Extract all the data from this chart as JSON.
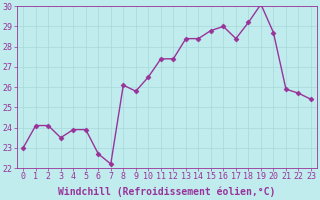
{
  "x": [
    0,
    1,
    2,
    3,
    4,
    5,
    6,
    7,
    8,
    9,
    10,
    11,
    12,
    13,
    14,
    15,
    16,
    17,
    18,
    19,
    20,
    21,
    22,
    23
  ],
  "y": [
    23.0,
    24.1,
    24.1,
    23.5,
    23.9,
    23.9,
    22.7,
    22.2,
    26.1,
    25.8,
    26.5,
    27.4,
    27.4,
    28.4,
    28.4,
    28.8,
    29.0,
    28.4,
    29.2,
    30.1,
    28.7,
    25.9,
    25.7,
    25.4
  ],
  "line_color": "#993399",
  "marker": "D",
  "bg_color": "#c0ecee",
  "grid_color": "#a8d8da",
  "axis_color": "#993399",
  "tick_color": "#993399",
  "xlabel": "Windchill (Refroidissement éolien,°C)",
  "ylim": [
    22,
    30
  ],
  "yticks": [
    22,
    23,
    24,
    25,
    26,
    27,
    28,
    29,
    30
  ],
  "xticks": [
    0,
    1,
    2,
    3,
    4,
    5,
    6,
    7,
    8,
    9,
    10,
    11,
    12,
    13,
    14,
    15,
    16,
    17,
    18,
    19,
    20,
    21,
    22,
    23
  ],
  "xlabel_fontsize": 7.0,
  "tick_fontsize": 6.0,
  "linewidth": 1.0,
  "markersize": 2.5
}
